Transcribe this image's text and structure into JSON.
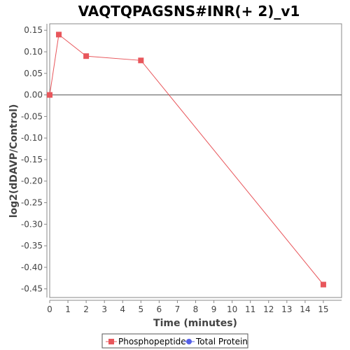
{
  "chart_data": {
    "type": "line",
    "title": "VAQTQPAGSNS#INR(+ 2)_v1",
    "xlabel": "Time (minutes)",
    "ylabel": "log2(dDAVP/Control)",
    "xlim": [
      0,
      16
    ],
    "ylim": [
      -0.47,
      0.165
    ],
    "x_ticks": [
      0,
      1,
      2,
      3,
      4,
      5,
      6,
      7,
      8,
      9,
      10,
      11,
      12,
      13,
      14,
      15
    ],
    "y_ticks": [
      0.15,
      0.1,
      0.05,
      0.0,
      -0.05,
      -0.1,
      -0.15,
      -0.2,
      -0.25,
      -0.3,
      -0.35,
      -0.4,
      -0.45
    ],
    "y_tick_labels": [
      "0.15",
      "0.10",
      "0.05",
      "0.00",
      "-0.05",
      "-0.10",
      "-0.15",
      "-0.20",
      "-0.25",
      "-0.30",
      "-0.35",
      "-0.40",
      "-0.45"
    ],
    "zero_line": true,
    "grid": false,
    "legend_position": "bottom",
    "series": [
      {
        "name": "Phosphopeptide",
        "color": "#e8565b",
        "marker": "square",
        "points": [
          {
            "x": 0,
            "y": 0.0
          },
          {
            "x": 0.5,
            "y": 0.14
          },
          {
            "x": 2,
            "y": 0.09
          },
          {
            "x": 5,
            "y": 0.08
          },
          {
            "x": 15,
            "y": -0.44
          }
        ]
      },
      {
        "name": "Total Protein",
        "color": "#5560e8",
        "marker": "circle",
        "points": []
      }
    ]
  }
}
